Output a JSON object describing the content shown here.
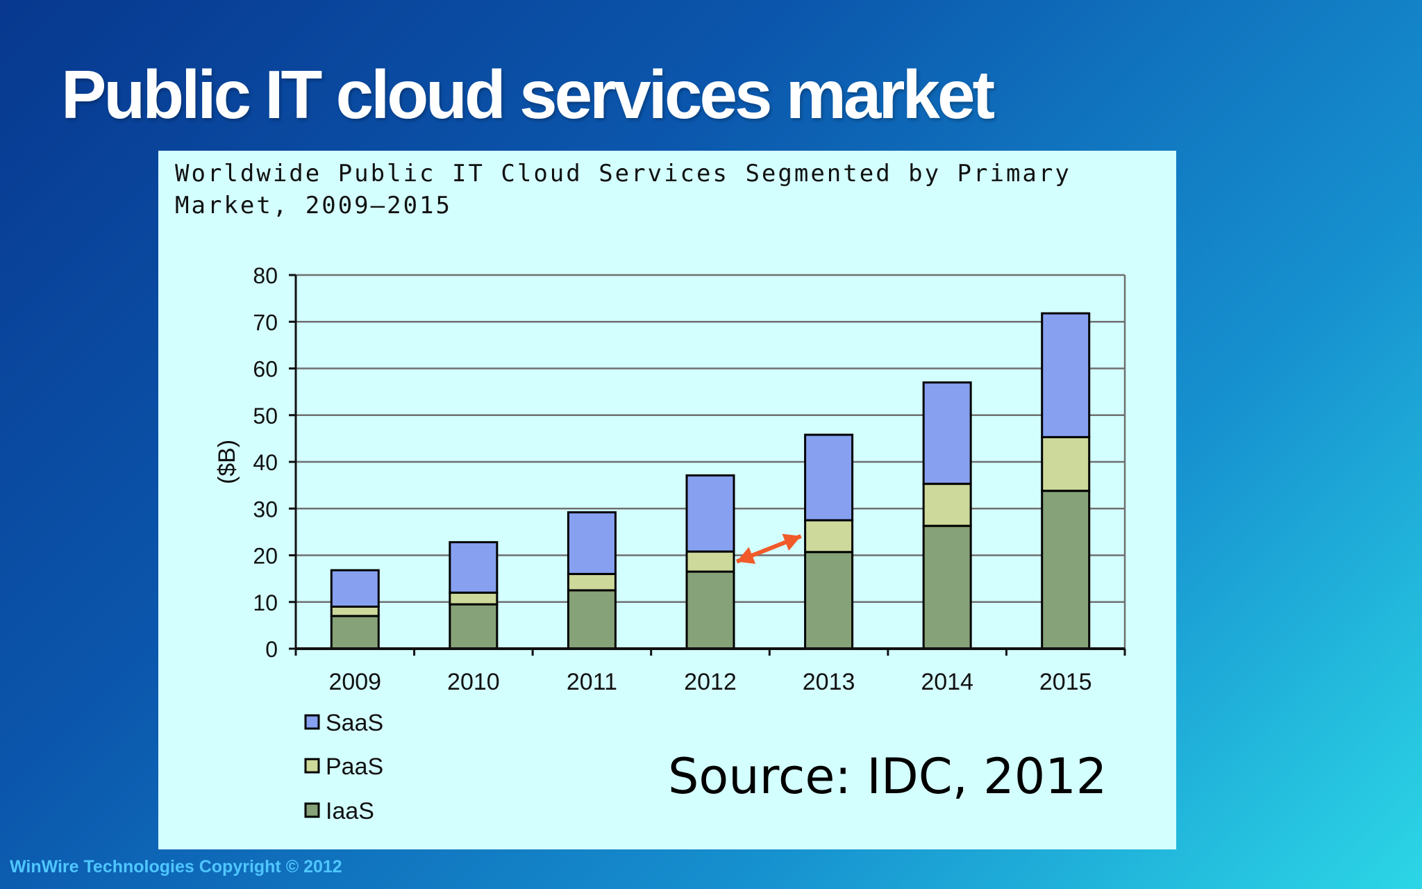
{
  "slide": {
    "title": "Public IT cloud services market",
    "source": "Source: IDC, 2012",
    "copyright": "WinWire Technologies Copyright © 2012"
  },
  "chart_data": {
    "type": "bar",
    "stacked": true,
    "title_lines": [
      "Worldwide Public IT Cloud Services Segmented by Primary",
      "Market, 2009–2015"
    ],
    "categories": [
      "2009",
      "2010",
      "2011",
      "2012",
      "2013",
      "2014",
      "2015"
    ],
    "series": [
      {
        "name": "IaaS",
        "label": "IaaS",
        "color": "#86a278",
        "values": [
          7,
          9.5,
          12.5,
          16.5,
          20.7,
          26.3,
          33.8
        ]
      },
      {
        "name": "PaaS",
        "label": "PaaS",
        "color": "#ccd99a",
        "values": [
          2,
          2.5,
          3.5,
          4.3,
          6.8,
          9,
          11.5
        ]
      },
      {
        "name": "SaaS",
        "label": "SaaS",
        "color": "#87a1f0",
        "values": [
          7.8,
          10.8,
          13.2,
          16.3,
          18.3,
          21.7,
          26.5
        ]
      }
    ],
    "legend_order": [
      "SaaS",
      "PaaS",
      "IaaS"
    ],
    "ylabel": "($B)",
    "xlabel": "",
    "ylim": [
      0,
      80
    ],
    "yticks": [
      0,
      10,
      20,
      30,
      40,
      50,
      60,
      70,
      80
    ],
    "grid": true,
    "legend_position": "bottom-left",
    "annotation": {
      "type": "double-arrow",
      "color": "#f15a29",
      "from_category": "2012",
      "to_category": "2013",
      "series": "PaaS"
    }
  }
}
